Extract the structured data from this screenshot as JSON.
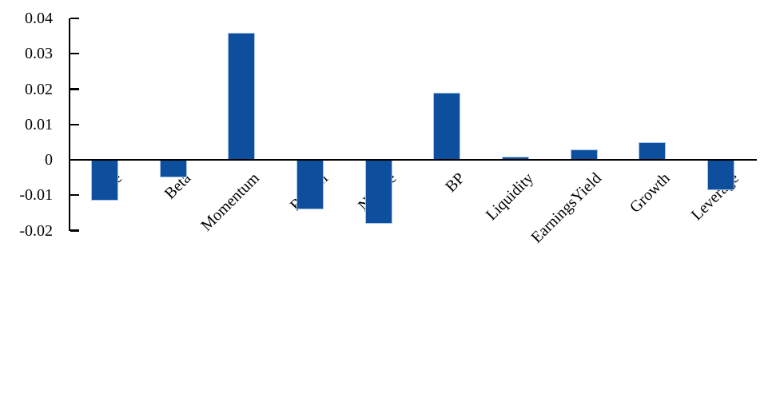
{
  "chart_data": {
    "type": "bar",
    "title": "",
    "xlabel": "",
    "ylabel": "",
    "categories": [
      "Size",
      "Beta",
      "Momentum",
      "ResVol",
      "NLsize",
      "BP",
      "Liquidity",
      "EarningsYield",
      "Growth",
      "Leverage"
    ],
    "values": [
      -0.0115,
      -0.005,
      0.036,
      -0.014,
      -0.018,
      0.019,
      0.001,
      0.003,
      0.005,
      -0.0085
    ],
    "ylim": [
      -0.02,
      0.04
    ],
    "yticks": [
      0.04,
      0.03,
      0.02,
      0.01,
      0,
      -0.01,
      -0.02
    ],
    "ytick_labels": [
      "0.04",
      "0.03",
      "0.02",
      "0.01",
      "0",
      "-0.01",
      "-0.02"
    ],
    "grid": false,
    "legend": false,
    "bar_color": "#0D4F9C",
    "bar_border_color": "#A9C6E8",
    "axis_color": "#000000",
    "background_color": "#FFFFFF"
  }
}
